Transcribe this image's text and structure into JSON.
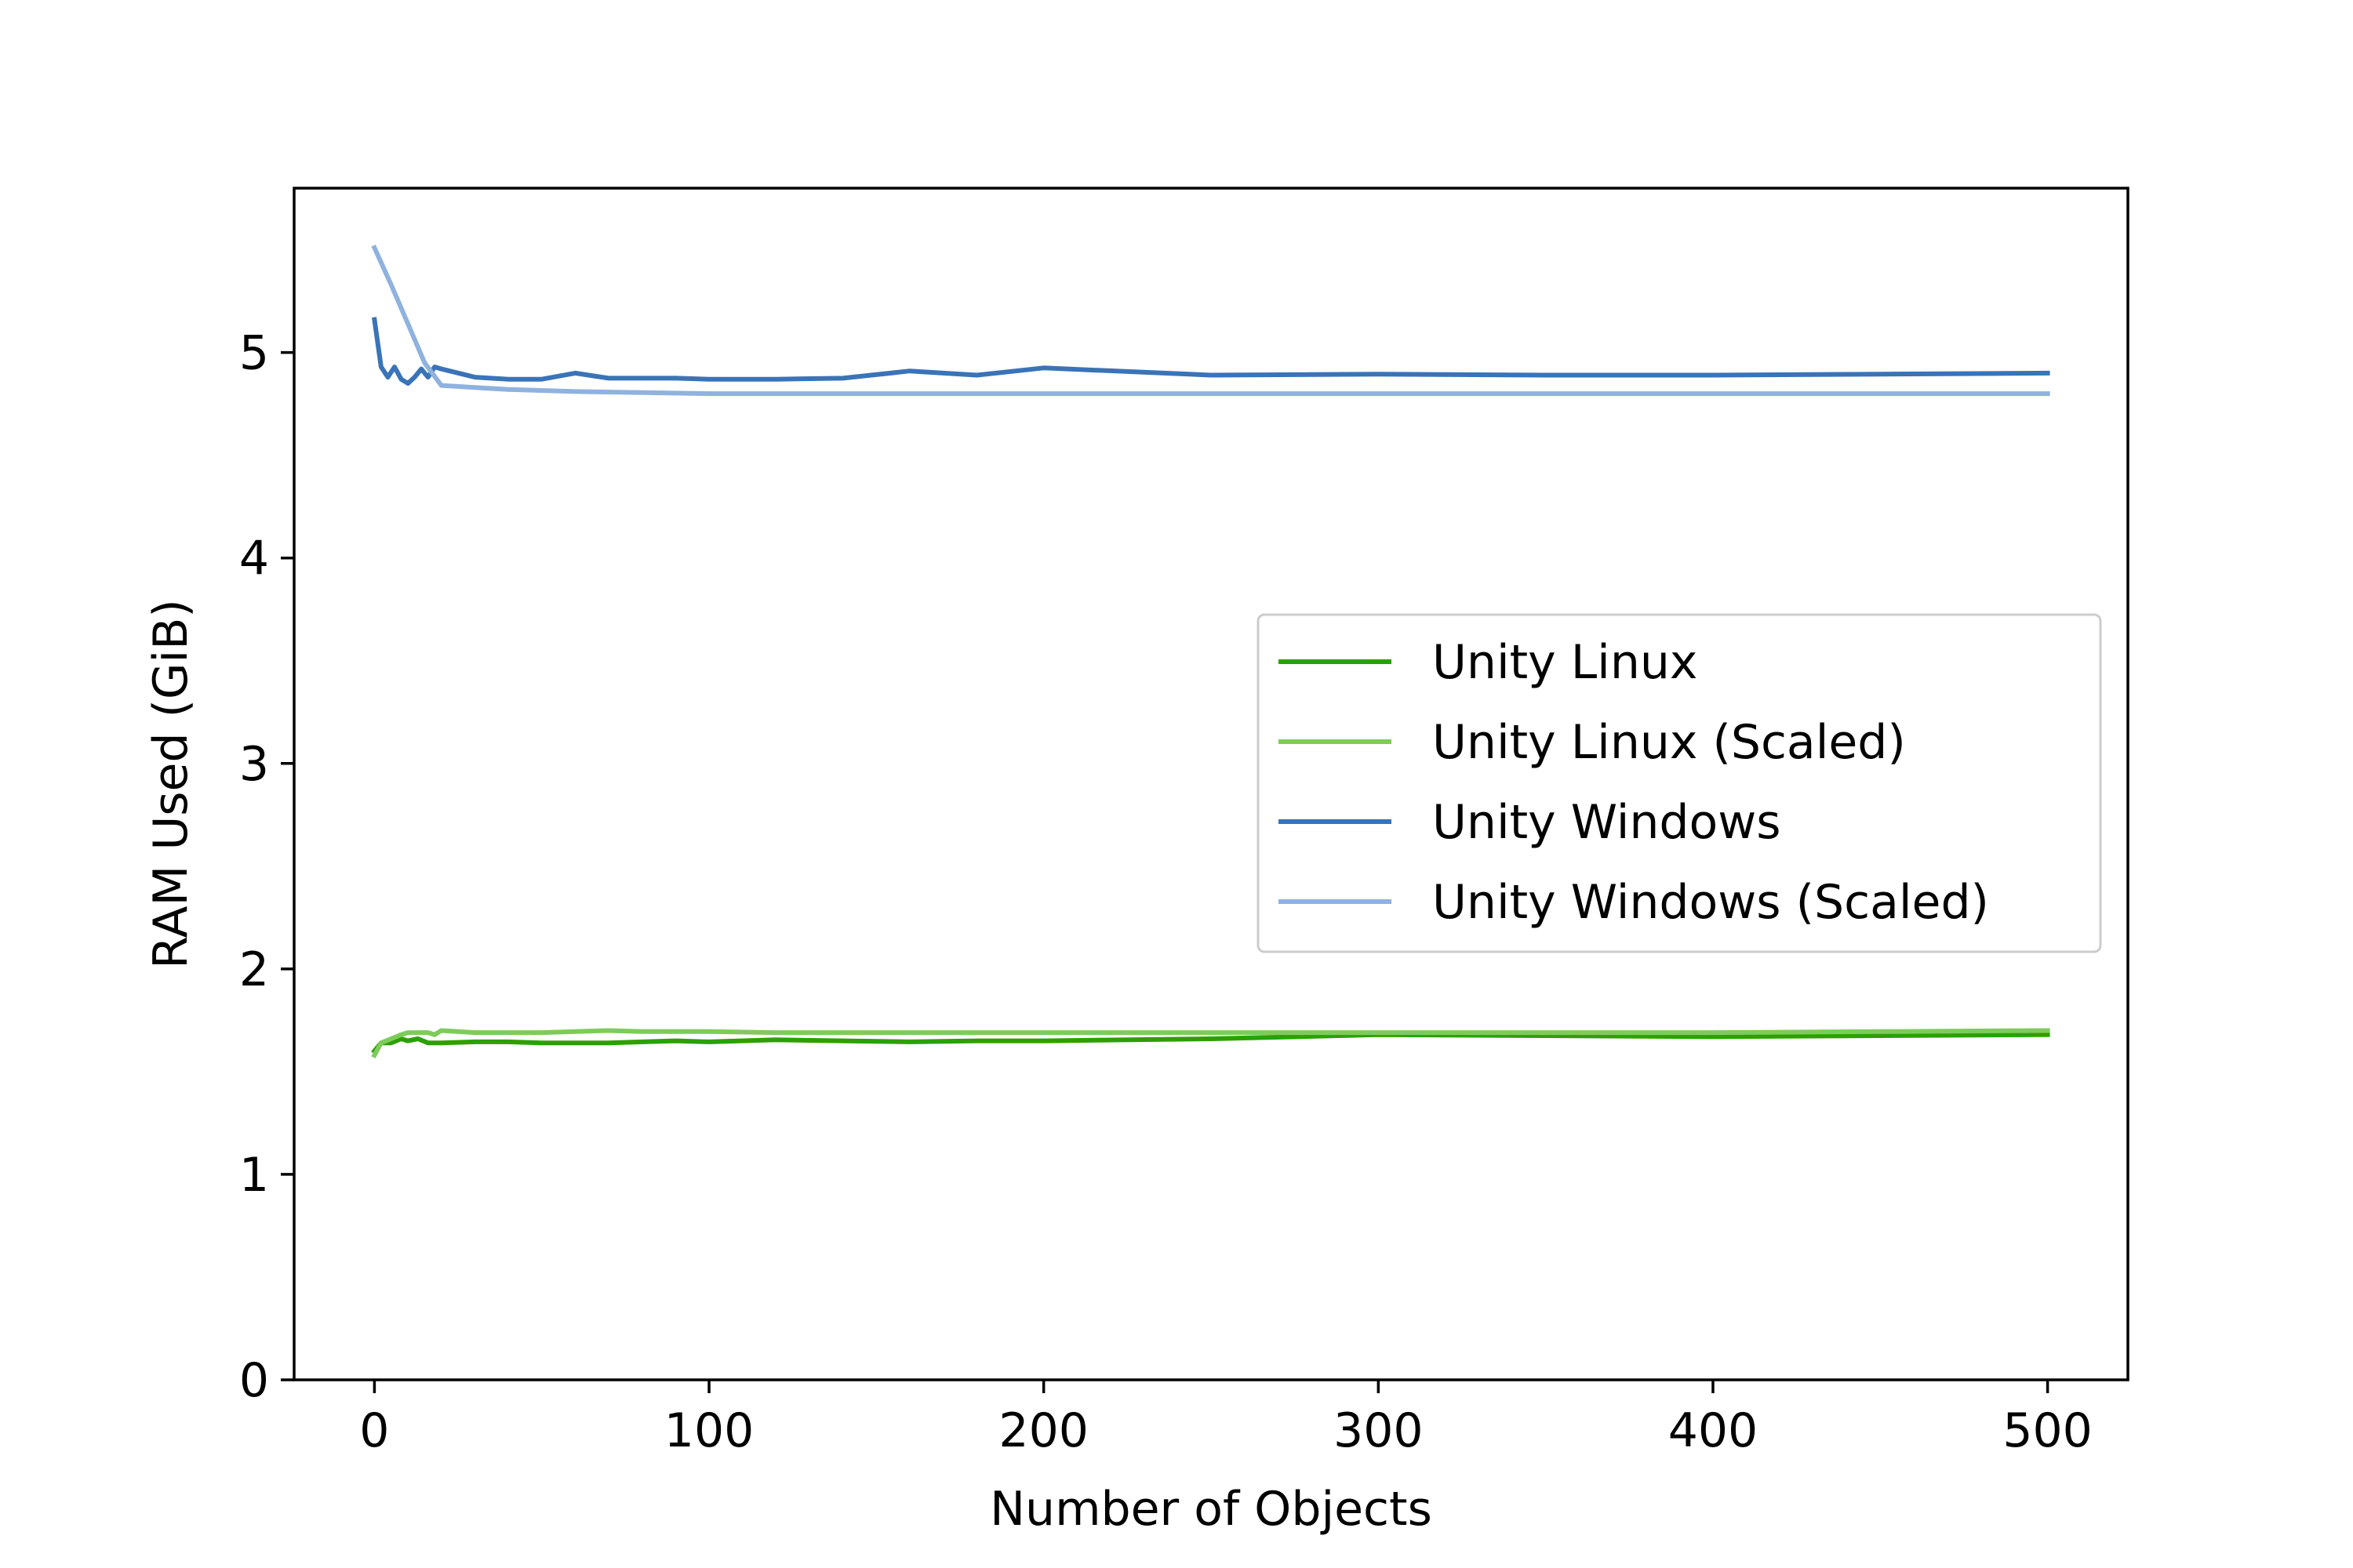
{
  "chart_data": {
    "type": "line",
    "title": "",
    "xlabel": "Number of Objects",
    "ylabel": "RAM Used (GiB)",
    "xlim": [
      -24,
      524
    ],
    "ylim": [
      0,
      5.8
    ],
    "xticks": [
      0,
      100,
      200,
      300,
      400,
      500
    ],
    "yticks": [
      0,
      1,
      2,
      3,
      4,
      5
    ],
    "grid": false,
    "legend_position": "center-right",
    "series": [
      {
        "name": "Unity Linux",
        "color": "#2ca000",
        "x": [
          0,
          2,
          5,
          8,
          10,
          13,
          16,
          20,
          30,
          40,
          50,
          60,
          70,
          80,
          90,
          100,
          120,
          140,
          160,
          180,
          200,
          250,
          300,
          350,
          400,
          450,
          500
        ],
        "y": [
          1.6,
          1.64,
          1.64,
          1.66,
          1.65,
          1.66,
          1.64,
          1.64,
          1.645,
          1.645,
          1.64,
          1.64,
          1.64,
          1.645,
          1.65,
          1.645,
          1.655,
          1.65,
          1.645,
          1.65,
          1.65,
          1.66,
          1.68,
          1.675,
          1.67,
          1.675,
          1.68
        ]
      },
      {
        "name": "Unity Linux (Scaled)",
        "color": "#7dcc5b",
        "x": [
          0,
          2,
          5,
          8,
          10,
          13,
          16,
          18,
          20,
          30,
          40,
          50,
          60,
          70,
          80,
          100,
          120,
          140,
          160,
          200,
          250,
          300,
          350,
          400,
          450,
          500
        ],
        "y": [
          1.58,
          1.64,
          1.66,
          1.68,
          1.69,
          1.69,
          1.69,
          1.68,
          1.7,
          1.69,
          1.69,
          1.69,
          1.695,
          1.7,
          1.695,
          1.695,
          1.69,
          1.69,
          1.69,
          1.69,
          1.69,
          1.69,
          1.69,
          1.69,
          1.695,
          1.7
        ]
      },
      {
        "name": "Unity Windows",
        "color": "#3a73b8",
        "x": [
          0,
          2,
          4,
          6,
          8,
          10,
          12,
          14,
          16,
          18,
          20,
          30,
          40,
          50,
          60,
          70,
          80,
          90,
          100,
          120,
          140,
          160,
          180,
          200,
          250,
          300,
          350,
          400,
          450,
          500
        ],
        "y": [
          5.16,
          4.93,
          4.88,
          4.93,
          4.87,
          4.85,
          4.88,
          4.92,
          4.88,
          4.93,
          4.92,
          4.88,
          4.87,
          4.87,
          4.9,
          4.875,
          4.875,
          4.875,
          4.87,
          4.87,
          4.875,
          4.91,
          4.89,
          4.925,
          4.89,
          4.895,
          4.89,
          4.89,
          4.895,
          4.9
        ]
      },
      {
        "name": "Unity Windows (Scaled)",
        "color": "#8fb2df",
        "x": [
          0,
          5,
          10,
          15,
          20,
          30,
          40,
          60,
          80,
          100,
          150,
          200,
          250,
          300,
          400,
          500
        ],
        "y": [
          5.51,
          5.33,
          5.14,
          4.95,
          4.84,
          4.83,
          4.82,
          4.81,
          4.805,
          4.8,
          4.8,
          4.8,
          4.8,
          4.8,
          4.8,
          4.8
        ]
      }
    ]
  }
}
